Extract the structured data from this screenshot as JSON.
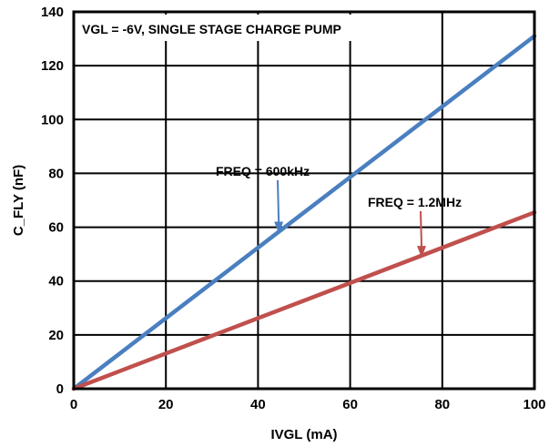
{
  "chart_data": {
    "type": "line",
    "title": "VGL = -6V, SINGLE STAGE CHARGE PUMP",
    "xlabel": "IVGL (mA)",
    "ylabel": "C_FLY (nF)",
    "xlim": [
      0,
      100
    ],
    "ylim": [
      0,
      140
    ],
    "xticks": [
      0,
      20,
      40,
      60,
      80,
      100
    ],
    "yticks": [
      0,
      20,
      40,
      60,
      80,
      100,
      120,
      140
    ],
    "grid": true,
    "series": [
      {
        "name": "FREQ = 600kHz",
        "color": "#4a7fc0",
        "x": [
          0,
          100
        ],
        "y": [
          0,
          131
        ]
      },
      {
        "name": "FREQ = 1.2MHz",
        "color": "#c0504d",
        "x": [
          0,
          100
        ],
        "y": [
          0,
          65.5
        ]
      }
    ],
    "annotations": [
      {
        "text": "FREQ = 600kHz",
        "points_to": {
          "x": 44.5,
          "y": 58
        },
        "color": "#4a7fc0"
      },
      {
        "text": "FREQ = 1.2MHz",
        "points_to": {
          "x": 75.5,
          "y": 49
        },
        "color": "#c0504d"
      }
    ]
  }
}
